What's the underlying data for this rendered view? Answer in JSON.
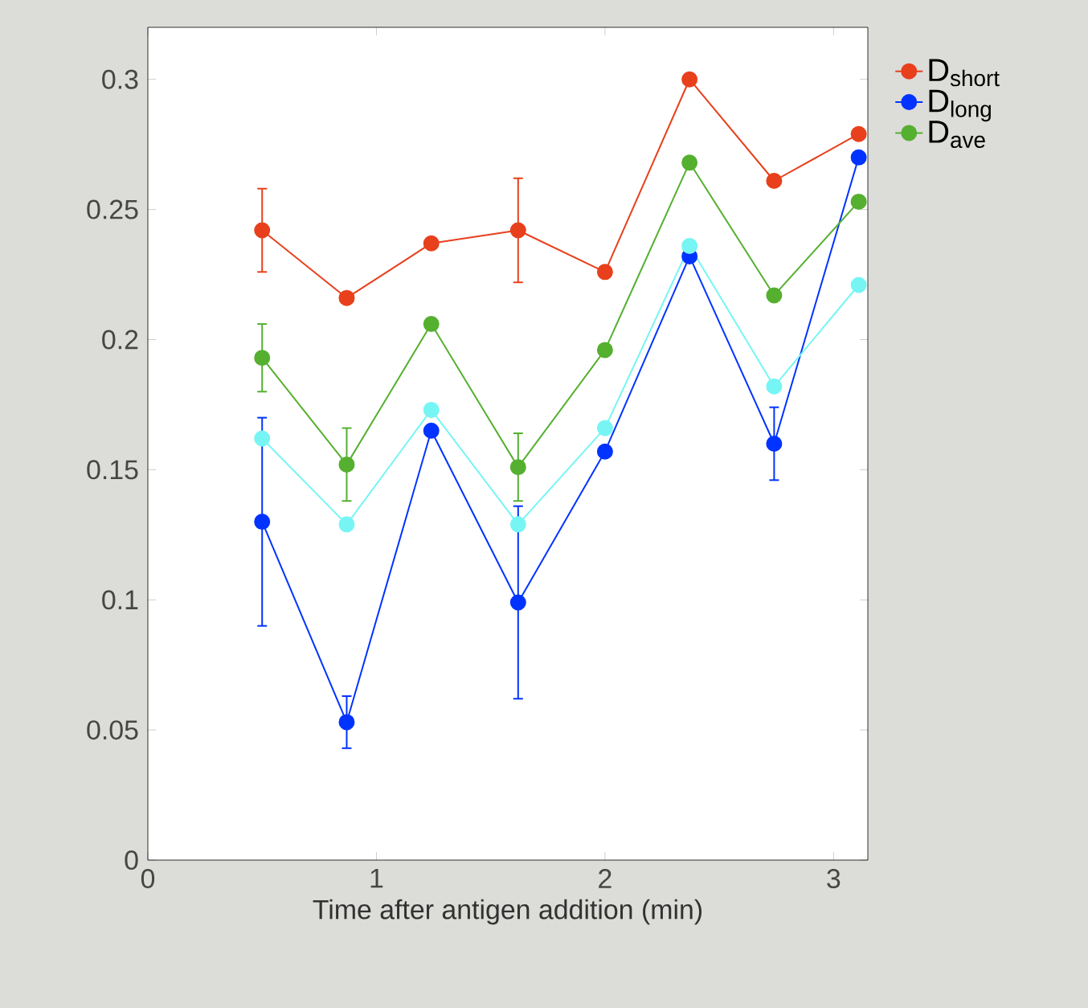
{
  "chart_data": {
    "type": "line",
    "xlabel": "Time after antigen addition (min)",
    "x": [
      0.5,
      0.87,
      1.24,
      1.62,
      2.0,
      2.37,
      2.74,
      3.11
    ],
    "series": [
      {
        "name": "D$_{short}$",
        "color": "#e8401c",
        "values": [
          0.242,
          0.216,
          0.237,
          0.242,
          0.226,
          0.3,
          0.261,
          0.279
        ],
        "errors": [
          0.016,
          null,
          null,
          0.02,
          null,
          null,
          null,
          null
        ]
      },
      {
        "name": "D$_{long}$",
        "color": "#0033ff",
        "values": [
          0.13,
          0.053,
          0.165,
          0.099,
          0.157,
          0.232,
          0.16,
          0.27
        ],
        "errors": [
          0.04,
          0.01,
          null,
          0.037,
          null,
          null,
          0.014,
          null
        ]
      },
      {
        "name": "D$_{ave}$",
        "color": "#55b030",
        "values": [
          0.193,
          0.152,
          0.206,
          0.151,
          0.196,
          0.268,
          0.217,
          0.253
        ],
        "errors": [
          0.013,
          0.014,
          null,
          0.013,
          null,
          null,
          null,
          null
        ]
      },
      {
        "color": "#77f5f5",
        "values": [
          0.162,
          0.129,
          0.173,
          0.129,
          0.166,
          0.236,
          0.182,
          0.221
        ]
      }
    ],
    "xlim": [
      0,
      3.15
    ],
    "xticks": [
      0,
      1,
      2,
      3
    ],
    "ylim": [
      0,
      0.32
    ],
    "yticks": [
      0,
      0.05,
      0.1,
      0.15,
      0.2,
      0.25,
      0.3
    ],
    "marker": "circle",
    "line_style": "solid",
    "legend": "right",
    "grid": false
  }
}
